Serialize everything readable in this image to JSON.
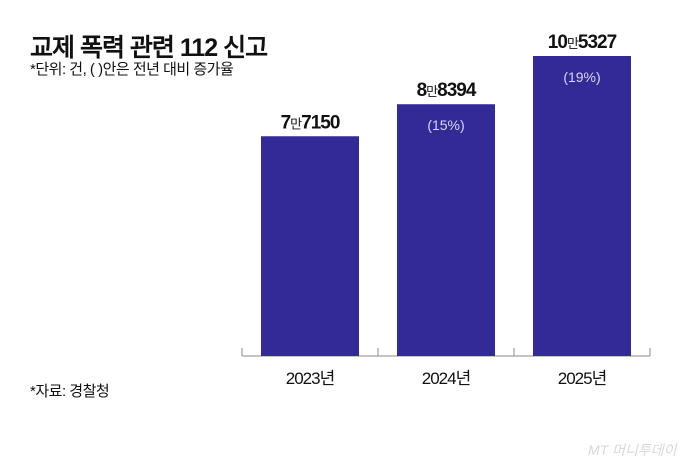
{
  "title": "교제 폭력 관련 112 신고",
  "subtitle": "*단위: 건, ( )안은 전년 대비 증가율",
  "source": "*자료: 경찰청",
  "logo": "MT 머니투데이",
  "chart_data": {
    "type": "bar",
    "categories": [
      "2023년",
      "2024년",
      "2025년"
    ],
    "values": [
      77150,
      88394,
      105327
    ],
    "value_labels": [
      {
        "lead": "7",
        "unit": "만",
        "rest": "7150"
      },
      {
        "lead": "8",
        "unit": "만",
        "rest": "8394"
      },
      {
        "lead": "10",
        "unit": "만",
        "rest": "5327"
      }
    ],
    "growth_labels": [
      "",
      "(15%)",
      "(19%)"
    ],
    "ylim": [
      0,
      105327
    ],
    "grid": false,
    "bar_color": "#322a96",
    "title": "교제 폭력 관련 112 신고",
    "xlabel": "",
    "ylabel": ""
  }
}
